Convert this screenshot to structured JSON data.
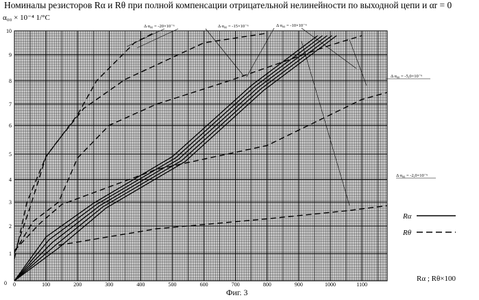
{
  "title": "Номиналы резисторов  Rα  и Rθ при полной компенсации отрицательной нелинейности по выходной цепи и αr = 0",
  "caption": "Фиг. 3",
  "chart_data": {
    "type": "line",
    "ylabel": "α₀₀ × 10⁻⁴  1/°C",
    "xlabel": "Rα ; Rθ×100",
    "xlim": [
      0,
      1180
    ],
    "ylim": [
      0,
      10
    ],
    "y_scale": "nonlinear",
    "grid": true,
    "x_ticks": [
      "0",
      "100",
      "200",
      "300",
      "400",
      "500",
      "600",
      "700",
      "800",
      "900",
      "1000",
      "1100"
    ],
    "y_ticks": [
      "1",
      "2",
      "3",
      "4",
      "5",
      "6",
      "7",
      "8",
      "9",
      "10"
    ],
    "legend": [
      {
        "label": "Rα",
        "style": "solid"
      },
      {
        "label": "Rθ",
        "style": "dashed"
      }
    ],
    "annotations": [
      "Δ α₀₀ = -20×10⁻⁶",
      "Δ α₀₀ = -15×10⁻⁶",
      "Δ α₀₀ = -10×10⁻⁶",
      "Δ α₀₀ = -5,0×10⁻⁶",
      "Δ α₀₀ = -2,0×10⁻⁶"
    ],
    "series": [
      {
        "style": "solid",
        "points": [
          [
            0,
            0
          ],
          [
            100,
            1.6
          ],
          [
            250,
            2.95
          ],
          [
            500,
            4.9
          ],
          [
            750,
            7.8
          ],
          [
            960,
            9.8
          ]
        ]
      },
      {
        "style": "solid",
        "points": [
          [
            0,
            0
          ],
          [
            110,
            1.5
          ],
          [
            260,
            2.9
          ],
          [
            510,
            4.85
          ],
          [
            760,
            7.75
          ],
          [
            975,
            9.8
          ]
        ]
      },
      {
        "style": "solid",
        "points": [
          [
            0,
            0
          ],
          [
            120,
            1.4
          ],
          [
            270,
            2.85
          ],
          [
            520,
            4.8
          ],
          [
            770,
            7.7
          ],
          [
            990,
            9.8
          ]
        ]
      },
      {
        "style": "solid",
        "points": [
          [
            0,
            0
          ],
          [
            130,
            1.3
          ],
          [
            280,
            2.8
          ],
          [
            530,
            4.75
          ],
          [
            780,
            7.65
          ],
          [
            1005,
            9.8
          ]
        ]
      },
      {
        "style": "solid",
        "points": [
          [
            0,
            0
          ],
          [
            140,
            1.2
          ],
          [
            290,
            2.75
          ],
          [
            540,
            4.7
          ],
          [
            790,
            7.6
          ],
          [
            1020,
            9.8
          ]
        ]
      },
      {
        "style": "dashed",
        "points": [
          [
            0,
            0.8
          ],
          [
            40,
            3.0
          ],
          [
            100,
            4.9
          ],
          [
            200,
            6.5
          ],
          [
            260,
            8.0
          ],
          [
            380,
            9.5
          ],
          [
            440,
            9.9
          ]
        ]
      },
      {
        "style": "dashed",
        "points": [
          [
            0,
            1.0
          ],
          [
            50,
            2.8
          ],
          [
            100,
            4.9
          ],
          [
            140,
            5.5
          ],
          [
            220,
            6.8
          ],
          [
            350,
            8.05
          ],
          [
            600,
            9.5
          ],
          [
            800,
            9.9
          ]
        ]
      },
      {
        "style": "dashed",
        "points": [
          [
            0,
            1.05
          ],
          [
            60,
            2.2
          ],
          [
            140,
            3.0
          ],
          [
            200,
            4.85
          ],
          [
            300,
            6.0
          ],
          [
            450,
            7.0
          ],
          [
            680,
            8.0
          ],
          [
            1000,
            9.4
          ],
          [
            1100,
            9.8
          ]
        ]
      },
      {
        "style": "dashed",
        "points": [
          [
            0,
            1.1
          ],
          [
            80,
            2.1
          ],
          [
            150,
            2.9
          ],
          [
            450,
            4.4
          ],
          [
            800,
            5.3
          ],
          [
            1100,
            7.2
          ],
          [
            1180,
            7.5
          ]
        ]
      },
      {
        "style": "dashed",
        "points": [
          [
            140,
            1.3
          ],
          [
            450,
            1.9
          ],
          [
            800,
            2.3
          ],
          [
            1060,
            2.65
          ],
          [
            1180,
            2.85
          ]
        ]
      }
    ]
  }
}
